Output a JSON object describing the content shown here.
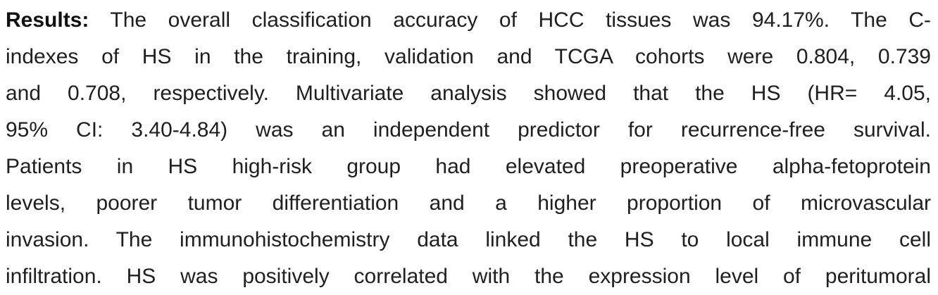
{
  "abstract": {
    "label": "Results:",
    "lines": [
      " The overall classification accuracy of HCC tissues was 94.17%. The C-",
      "indexes of HS in the training, validation and TCGA cohorts were 0.804, 0.739",
      "and 0.708, respectively. Multivariate analysis showed that the HS (HR= 4.05,",
      "95% CI: 3.40-4.84) was an independent predictor for recurrence-free survival.",
      "Patients in HS high-risk group had elevated preoperative alpha-fetoprotein",
      "levels, poorer tumor differentiation and a higher proportion of microvascular",
      "invasion. The immunohistochemistry data linked the HS to local immune cell",
      "infiltration. HS was positively correlated with the expression level of peritumoral"
    ]
  }
}
